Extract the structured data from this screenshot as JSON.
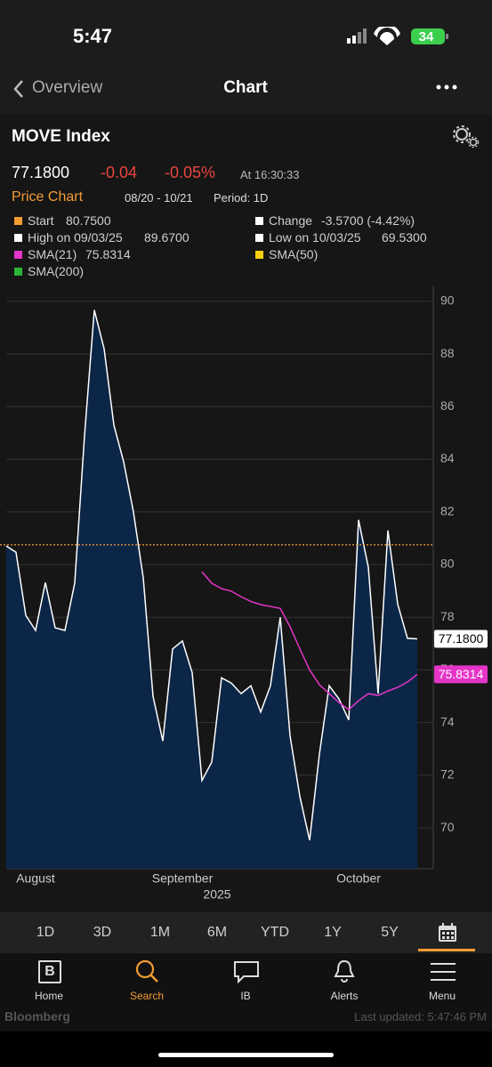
{
  "status_bar": {
    "time": "5:47",
    "battery": "34"
  },
  "nav": {
    "back": "Overview",
    "title": "Chart"
  },
  "quote": {
    "price": "77.1800",
    "change": "-0.04",
    "change_pct": "-0.05%",
    "time": "At 16:30:33"
  },
  "chart_header": {
    "title": "Price Chart",
    "range": "08/20 - 10/21",
    "period": "Period: 1D"
  },
  "legend": {
    "start": "Start",
    "start_value": "80.7500",
    "change": "Change",
    "change_value": "-3.5700 (-4.42%)",
    "high": "High on 09/03/25",
    "high_value": "89.6700",
    "low": "Low on 10/03/25",
    "low_value": "69.5300",
    "sma21_value": "75.8314",
    "sma50": "SMA(50)",
    "sma200": "SMA(200)"
  },
  "chart_data": {
    "type": "line",
    "categories": [
      null,
      null,
      null,
      "August",
      null,
      null,
      null,
      null,
      null,
      null,
      null,
      null,
      null,
      null,
      null,
      null,
      null,
      null,
      "September",
      null,
      null,
      null,
      null,
      null,
      null,
      null,
      null,
      null,
      null,
      null,
      null,
      null,
      null,
      null,
      null,
      null,
      "October",
      null,
      null,
      null,
      null,
      null,
      null
    ],
    "xlabel": "2025",
    "series": [
      {
        "name": "MOVE Index",
        "color": "#ffffff",
        "area_color": "#0c2647",
        "values": [
          80.71,
          80.47,
          78.07,
          77.5,
          79.32,
          77.6,
          77.5,
          79.3,
          84.9,
          89.67,
          88.2,
          85.3,
          83.9,
          82.0,
          79.5,
          75.0,
          73.3,
          76.8,
          77.1,
          75.9,
          71.8,
          72.5,
          75.7,
          75.5,
          75.1,
          75.4,
          74.4,
          75.4,
          78.0,
          73.5,
          71.2,
          69.53,
          72.8,
          75.4,
          74.9,
          74.1,
          81.7,
          79.9,
          75.1,
          81.3,
          78.5,
          77.2,
          77.18
        ],
        "value_labels": [
          null,
          null,
          null,
          null,
          null,
          null,
          null,
          null,
          null,
          null,
          null,
          null,
          null,
          null,
          null,
          null,
          null,
          null,
          null,
          null,
          null,
          null,
          null,
          null,
          null,
          null,
          null,
          null,
          null,
          null,
          null,
          null,
          null,
          null,
          null,
          null,
          null,
          null,
          null,
          null,
          null,
          null,
          "77.1800"
        ]
      },
      {
        "name": "SMA(21)",
        "color": "#e535c8",
        "values": [
          null,
          null,
          null,
          null,
          null,
          null,
          null,
          null,
          null,
          null,
          null,
          null,
          null,
          null,
          null,
          null,
          null,
          null,
          null,
          null,
          79.73,
          79.29,
          79.09,
          78.99,
          78.78,
          78.6,
          78.48,
          78.41,
          78.34,
          77.64,
          76.8,
          76.0,
          75.44,
          75.1,
          74.76,
          74.49,
          74.83,
          75.1,
          75.03,
          75.2,
          75.34,
          75.54,
          75.8314
        ]
      }
    ],
    "hline": {
      "value": 80.75,
      "color": "#f39c34"
    },
    "ylim": [
      68.45,
      90.57
    ],
    "yticks": [
      70,
      72,
      74,
      76,
      78,
      80,
      82,
      84,
      86,
      88,
      90
    ],
    "grid": true
  },
  "periods": [
    "1D",
    "3D",
    "1M",
    "6M",
    "YTD",
    "1Y",
    "5Y"
  ],
  "tabs": {
    "home_icon": "B",
    "items": [
      "Home",
      "Search",
      "IB",
      "Alerts",
      "Menu"
    ]
  },
  "footer": {
    "brand": "Bloomberg",
    "updated": "Last updated: 5:47:46 PM"
  }
}
